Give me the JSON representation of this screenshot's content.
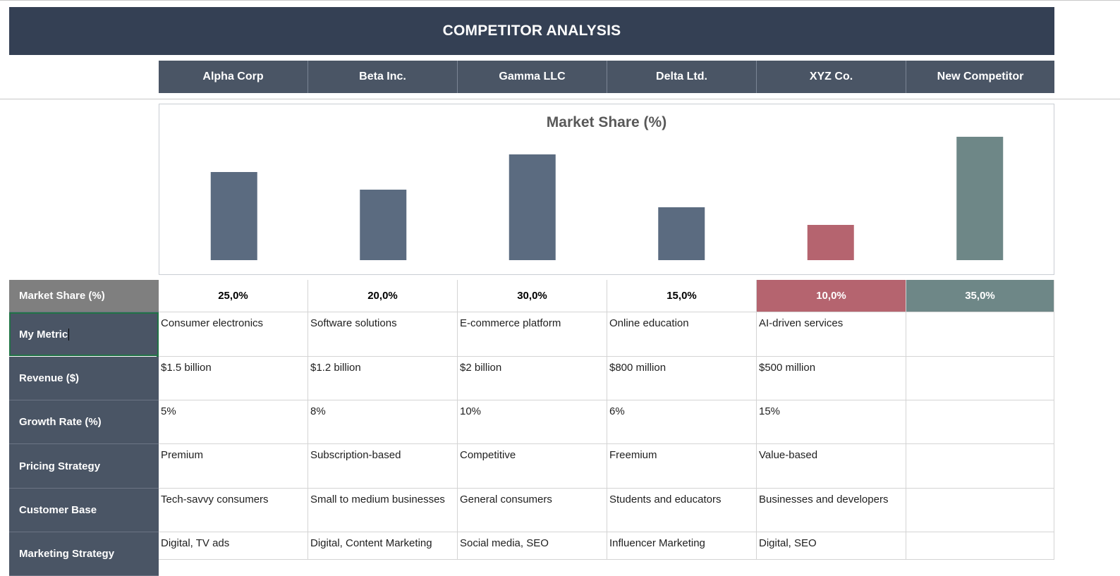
{
  "title": "COMPETITOR ANALYSIS",
  "competitors": [
    "Alpha Corp",
    "Beta Inc.",
    "Gamma LLC",
    "Delta Ltd.",
    "XYZ Co.",
    "New Competitor"
  ],
  "colors": {
    "title_bg": "#344054",
    "header_bg": "#4a5565",
    "bar_default": "#5b6b80",
    "bar_highlight_low": "#b5646f",
    "bar_highlight_high": "#6e8787",
    "selection": "#217346"
  },
  "chart_data": {
    "type": "bar",
    "title": "Market Share (%)",
    "categories": [
      "Alpha Corp",
      "Beta Inc.",
      "Gamma LLC",
      "Delta Ltd.",
      "XYZ Co.",
      "New Competitor"
    ],
    "values": [
      25,
      20,
      30,
      15,
      10,
      35
    ],
    "ylim": [
      0,
      40
    ],
    "grid": false,
    "legend": "none"
  },
  "market_share": {
    "label": "Market Share (%)",
    "values": [
      "25,0%",
      "20,0%",
      "30,0%",
      "15,0%",
      "10,0%",
      "35,0%"
    ]
  },
  "rows": [
    {
      "label": "My Metric",
      "values": [
        "Consumer electronics",
        "Software solutions",
        "E-commerce platform",
        "Online education",
        "AI-driven services",
        ""
      ]
    },
    {
      "label": "Revenue ($)",
      "values": [
        "$1.5 billion",
        "$1.2 billion",
        "$2 billion",
        "$800 million",
        "$500 million",
        ""
      ]
    },
    {
      "label": "Growth Rate (%)",
      "values": [
        "5%",
        "8%",
        "10%",
        "6%",
        "15%",
        ""
      ]
    },
    {
      "label": "Pricing Strategy",
      "values": [
        "Premium",
        "Subscription-based",
        "Competitive",
        "Freemium",
        "Value-based",
        ""
      ]
    },
    {
      "label": "Customer Base",
      "values": [
        "Tech-savvy consumers",
        "Small to medium businesses",
        "General consumers",
        "Students and educators",
        "Businesses and developers",
        ""
      ]
    },
    {
      "label": "Marketing Strategy",
      "values": [
        "Digital, TV ads",
        "Digital, Content Marketing",
        "Social media, SEO",
        "Influencer Marketing",
        "Digital, SEO",
        ""
      ]
    }
  ]
}
